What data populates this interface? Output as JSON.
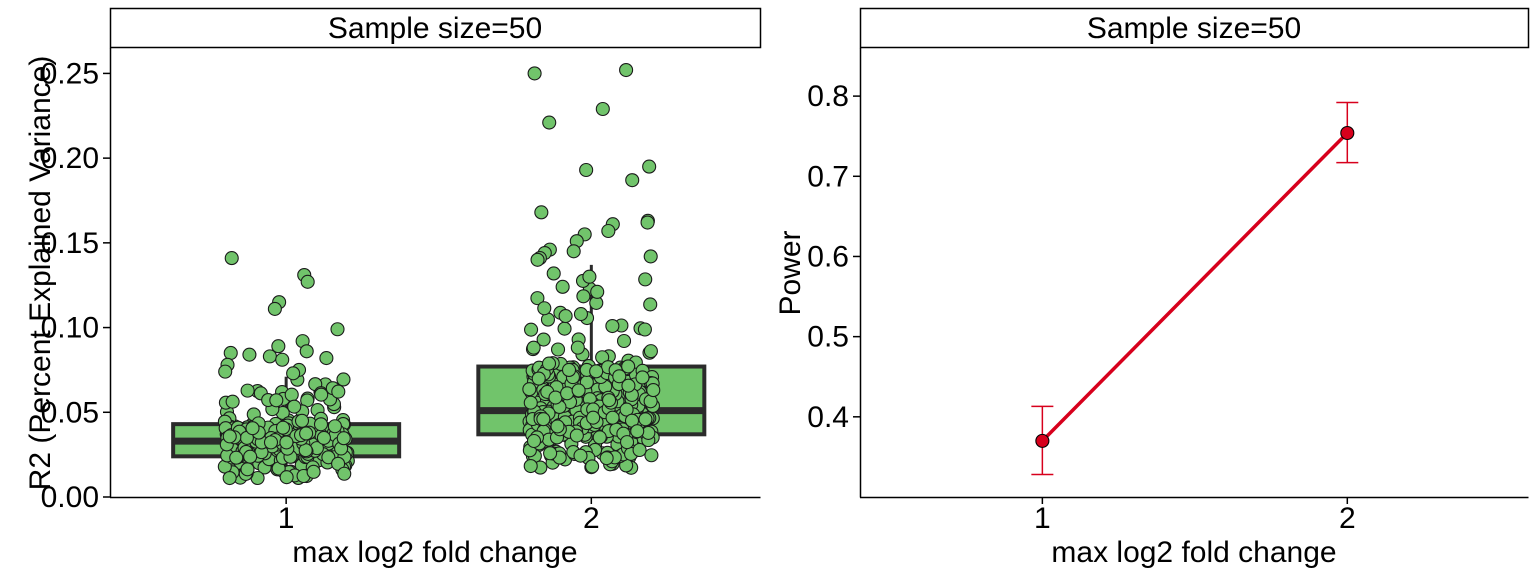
{
  "chart_data": [
    {
      "type": "box",
      "panel_title": "Sample size=50",
      "xlabel": "max log2 fold change",
      "ylabel": "R2 (Percent Explained Variance)",
      "categories": [
        "1",
        "2"
      ],
      "ylim": [
        0,
        0.265
      ],
      "yticks": [
        "0.00",
        "0.05",
        "0.10",
        "0.15",
        "0.20",
        "0.25"
      ],
      "box_fill": "#71c46b",
      "box_stroke": "#2b2b2b",
      "point_fill": "#71c46b",
      "point_stroke": "#1a1a1a",
      "boxes": [
        {
          "category": "1",
          "q1": 0.024,
          "median": 0.033,
          "q3": 0.043,
          "whisker_low": 0.011,
          "whisker_high": 0.071
        },
        {
          "category": "2",
          "q1": 0.037,
          "median": 0.051,
          "q3": 0.077,
          "whisker_low": 0.017,
          "whisker_high": 0.137
        }
      ],
      "outliers": {
        "1": [
          0.141,
          0.131,
          0.127,
          0.115,
          0.111,
          0.099,
          0.092,
          0.089,
          0.086,
          0.085,
          0.084,
          0.083,
          0.082,
          0.081,
          0.078,
          0.075,
          0.074,
          0.073
        ],
        "2": [
          0.252,
          0.25,
          0.229,
          0.221,
          0.195,
          0.193,
          0.187,
          0.168,
          0.163,
          0.162,
          0.161,
          0.157,
          0.155,
          0.151,
          0.146,
          0.145,
          0.144,
          0.142,
          0.141,
          0.14
        ]
      },
      "jitter_points": {
        "1": {
          "count": 320,
          "low": 0.011,
          "high": 0.071
        },
        "2": {
          "count": 430,
          "low": 0.017,
          "high": 0.137
        }
      },
      "grid": false
    },
    {
      "type": "line",
      "panel_title": "Sample size=50",
      "xlabel": "max log2 fold change",
      "ylabel": "Power",
      "categories": [
        "1",
        "2"
      ],
      "ylim": [
        0.3,
        0.86
      ],
      "yticks": [
        "0.4",
        "0.5",
        "0.6",
        "0.7",
        "0.8"
      ],
      "color": "#d7001c",
      "series": [
        {
          "values": [
            0.37,
            0.754
          ],
          "error_low": [
            0.328,
            0.717
          ],
          "error_high": [
            0.413,
            0.792
          ]
        }
      ],
      "grid": false
    }
  ]
}
